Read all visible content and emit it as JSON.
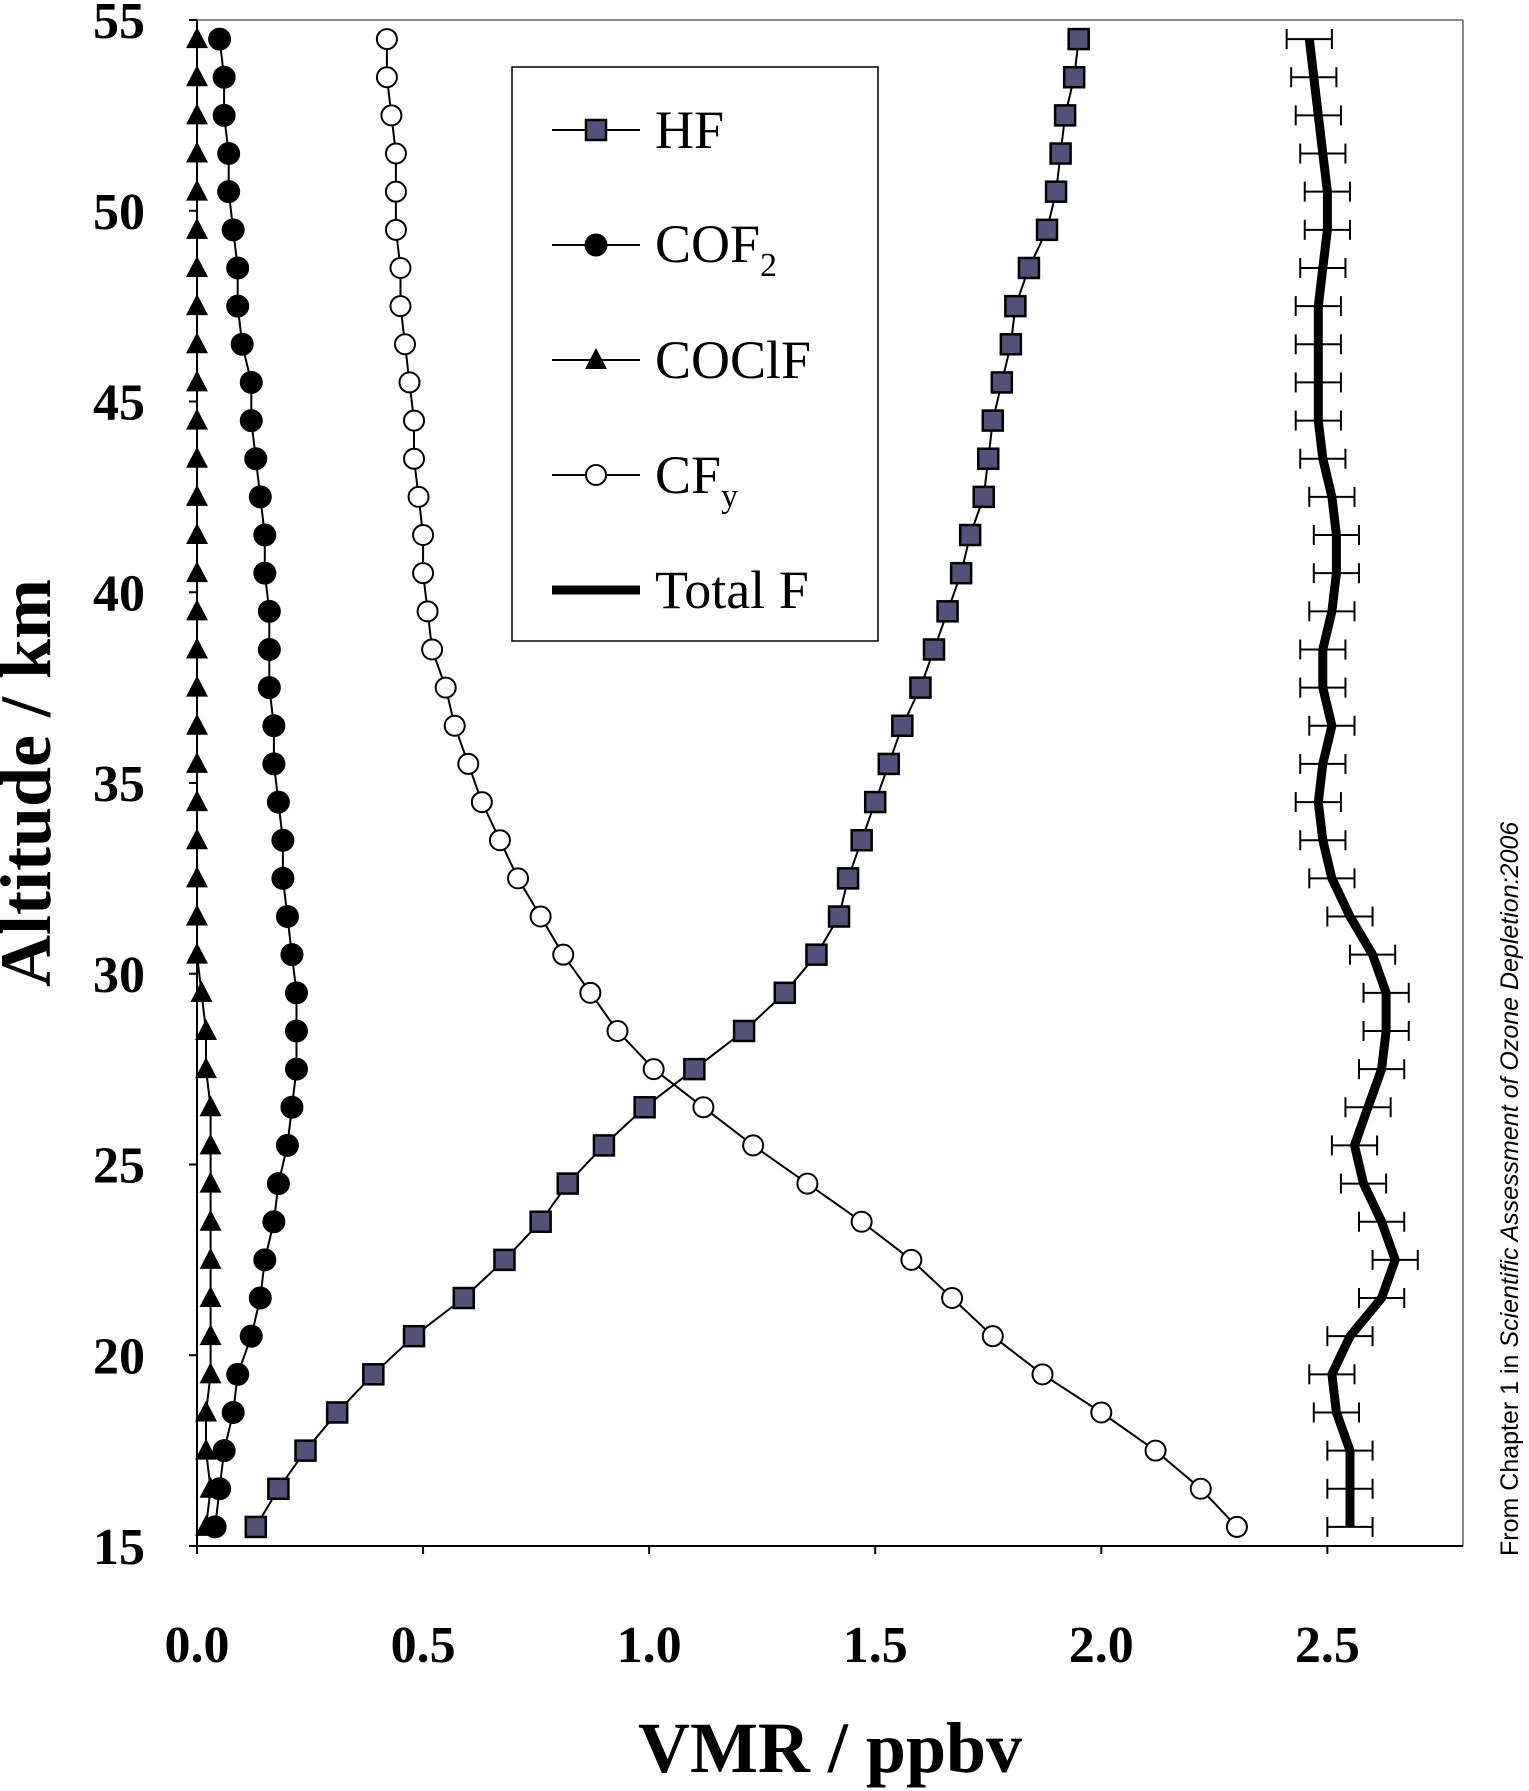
{
  "chart_data": {
    "type": "line",
    "xlabel": "VMR / ppbv",
    "ylabel": "Altitude / km",
    "xlim": [
      0.0,
      2.8
    ],
    "ylim": [
      15,
      55
    ],
    "x_ticks": [
      "0.0",
      "0.5",
      "1.0",
      "1.5",
      "2.0",
      "2.5"
    ],
    "y_ticks": [
      "15",
      "20",
      "25",
      "30",
      "35",
      "40",
      "45",
      "50",
      "55"
    ],
    "grid": false,
    "legend_placement": "top-center",
    "altitudes": [
      15.5,
      16.5,
      17.5,
      18.5,
      19.5,
      20.5,
      21.5,
      22.5,
      23.5,
      24.5,
      25.5,
      26.5,
      27.5,
      28.5,
      29.5,
      30.5,
      31.5,
      32.5,
      33.5,
      34.5,
      35.5,
      36.5,
      37.5,
      38.5,
      39.5,
      40.5,
      41.5,
      42.5,
      43.5,
      44.5,
      45.5,
      46.5,
      47.5,
      48.5,
      49.5,
      50.5,
      51.5,
      52.5,
      53.5,
      54.5
    ],
    "series": [
      {
        "name": "HF",
        "marker": "square",
        "color": "#55507a",
        "values": [
          0.13,
          0.18,
          0.24,
          0.31,
          0.39,
          0.48,
          0.59,
          0.68,
          0.76,
          0.82,
          0.9,
          0.99,
          1.1,
          1.21,
          1.3,
          1.37,
          1.42,
          1.44,
          1.47,
          1.5,
          1.53,
          1.56,
          1.6,
          1.63,
          1.66,
          1.69,
          1.71,
          1.74,
          1.75,
          1.76,
          1.78,
          1.8,
          1.81,
          1.84,
          1.88,
          1.9,
          1.91,
          1.92,
          1.94,
          1.95
        ]
      },
      {
        "name": "COF",
        "name_subscript": "2",
        "marker": "filled-circle",
        "color": "#000000",
        "values": [
          0.04,
          0.05,
          0.06,
          0.08,
          0.09,
          0.12,
          0.14,
          0.15,
          0.17,
          0.18,
          0.2,
          0.21,
          0.22,
          0.22,
          0.22,
          0.21,
          0.2,
          0.19,
          0.19,
          0.18,
          0.17,
          0.17,
          0.16,
          0.16,
          0.16,
          0.15,
          0.15,
          0.14,
          0.13,
          0.12,
          0.12,
          0.1,
          0.09,
          0.09,
          0.08,
          0.07,
          0.07,
          0.06,
          0.06,
          0.05
        ]
      },
      {
        "name": "COClF",
        "marker": "triangle",
        "color": "#000000",
        "values": [
          0.02,
          0.03,
          0.02,
          0.02,
          0.03,
          0.03,
          0.03,
          0.03,
          0.03,
          0.03,
          0.03,
          0.03,
          0.02,
          0.02,
          0.01,
          0.0,
          0.0,
          0.0,
          0.0,
          0.0,
          0.0,
          0.0,
          0.0,
          0.0,
          0.0,
          0.0,
          0.0,
          0.0,
          0.0,
          0.0,
          0.0,
          0.0,
          0.0,
          0.0,
          0.0,
          0.0,
          0.0,
          0.0,
          0.0,
          0.0
        ]
      },
      {
        "name": "CF",
        "name_subscript": "y",
        "marker": "open-circle",
        "color": "#000000",
        "values": [
          2.3,
          2.22,
          2.12,
          2.0,
          1.87,
          1.76,
          1.67,
          1.58,
          1.47,
          1.35,
          1.23,
          1.12,
          1.01,
          0.93,
          0.87,
          0.81,
          0.76,
          0.71,
          0.67,
          0.63,
          0.6,
          0.57,
          0.55,
          0.52,
          0.51,
          0.5,
          0.5,
          0.49,
          0.48,
          0.48,
          0.47,
          0.46,
          0.45,
          0.45,
          0.44,
          0.44,
          0.44,
          0.43,
          0.42,
          0.42
        ]
      },
      {
        "name": "Total F",
        "marker": "none",
        "line": "thick",
        "error_bar": 0.05,
        "color": "#000000",
        "values": [
          2.55,
          2.55,
          2.55,
          2.52,
          2.51,
          2.55,
          2.62,
          2.65,
          2.62,
          2.58,
          2.56,
          2.59,
          2.62,
          2.63,
          2.63,
          2.6,
          2.55,
          2.51,
          2.49,
          2.48,
          2.49,
          2.51,
          2.49,
          2.49,
          2.51,
          2.52,
          2.52,
          2.51,
          2.49,
          2.48,
          2.48,
          2.48,
          2.48,
          2.49,
          2.5,
          2.5,
          2.49,
          2.48,
          2.47,
          2.46
        ]
      }
    ]
  },
  "credit": {
    "prefix": "From Chapter 1 in ",
    "source": "Scientific Assessment of Ozone Depletion:2006"
  }
}
